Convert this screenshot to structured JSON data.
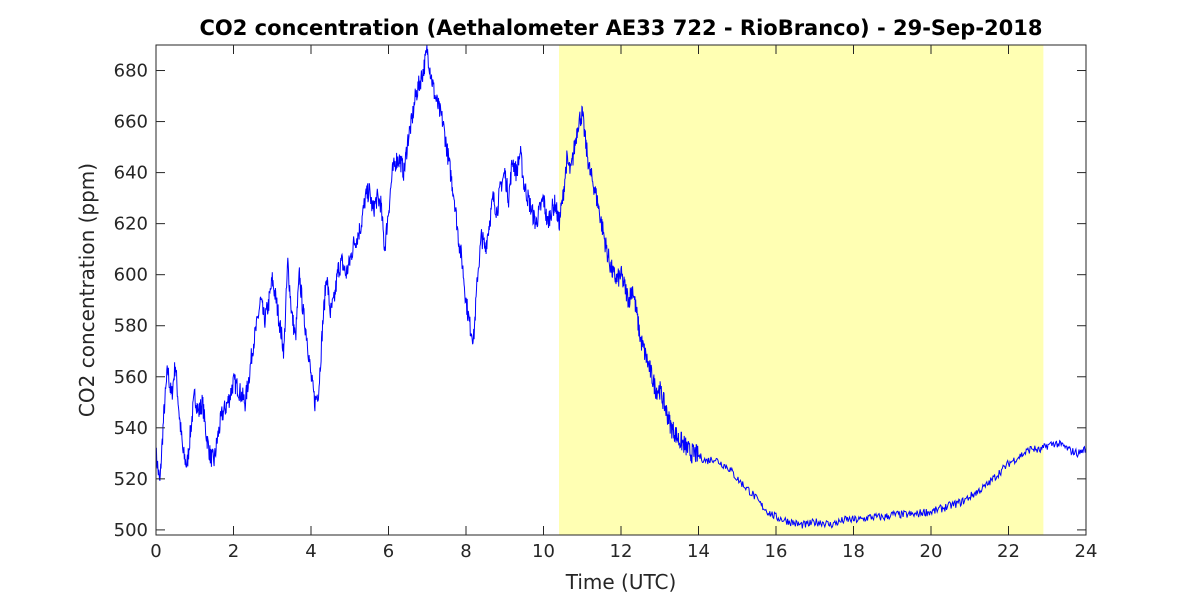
{
  "chart_data": {
    "type": "line",
    "title": "CO2 concentration (Aethalometer AE33 722 - RioBranco) - 29-Sep-2018",
    "xlabel": "Time (UTC)",
    "ylabel": "CO2 concentration (ppm)",
    "xlim": [
      0,
      24
    ],
    "ylim": [
      498,
      690
    ],
    "x_ticks": [
      0,
      2,
      4,
      6,
      8,
      10,
      12,
      14,
      16,
      18,
      20,
      22,
      24
    ],
    "y_ticks": [
      500,
      520,
      540,
      560,
      580,
      600,
      620,
      640,
      660,
      680
    ],
    "grid": false,
    "line_color": "#0000ff",
    "highlight": {
      "x_start": 10.4,
      "x_end": 22.9,
      "color": "#ffffb3"
    },
    "series": [
      {
        "x": [
          0,
          0.1,
          0.2,
          0.3,
          0.4,
          0.5,
          0.6,
          0.7,
          0.8,
          0.9,
          1.0,
          1.1,
          1.2,
          1.3,
          1.4,
          1.5,
          1.6,
          1.7,
          1.8,
          1.9,
          2.0,
          2.1,
          2.2,
          2.3,
          2.4,
          2.5,
          2.6,
          2.7,
          2.8,
          2.9,
          3.0,
          3.1,
          3.2,
          3.3,
          3.4,
          3.5,
          3.6,
          3.7,
          3.8,
          3.9,
          4.0,
          4.1,
          4.2,
          4.3,
          4.4,
          4.5,
          4.6,
          4.7,
          4.8,
          4.9,
          5.0,
          5.1,
          5.2,
          5.3,
          5.4,
          5.5,
          5.6,
          5.7,
          5.8,
          5.9,
          6.0,
          6.1,
          6.2,
          6.3,
          6.4,
          6.5,
          6.6,
          6.7,
          6.8,
          6.9,
          7.0,
          7.1,
          7.2,
          7.3,
          7.4,
          7.5,
          7.6,
          7.7,
          7.8,
          7.9,
          8.0,
          8.1,
          8.2,
          8.3,
          8.4,
          8.5,
          8.6,
          8.7,
          8.8,
          8.9,
          9.0,
          9.1,
          9.2,
          9.3,
          9.4,
          9.5,
          9.6,
          9.7,
          9.8,
          9.9,
          10.0,
          10.1,
          10.2,
          10.3,
          10.4,
          10.5,
          10.6,
          10.7,
          10.8,
          10.9,
          11.0,
          11.1,
          11.2,
          11.3,
          11.4,
          11.5,
          11.6,
          11.7,
          11.8,
          11.9,
          12.0,
          12.1,
          12.2,
          12.3,
          12.4,
          12.5,
          12.6,
          12.7,
          12.8,
          12.9,
          13.0,
          13.1,
          13.2,
          13.3,
          13.4,
          13.5,
          13.6,
          13.7,
          13.8,
          13.9,
          14.0,
          14.2,
          14.4,
          14.6,
          14.8,
          15.0,
          15.2,
          15.4,
          15.6,
          15.8,
          16.0,
          16.2,
          16.4,
          16.6,
          16.8,
          17.0,
          17.2,
          17.4,
          17.6,
          17.8,
          18.0,
          18.2,
          18.4,
          18.6,
          18.8,
          19.0,
          19.2,
          19.4,
          19.6,
          19.8,
          20.0,
          20.2,
          20.4,
          20.6,
          20.8,
          21.0,
          21.2,
          21.4,
          21.6,
          21.8,
          22.0,
          22.2,
          22.4,
          22.6,
          22.8,
          23.0,
          23.2,
          23.4,
          23.6,
          23.8,
          24.0
        ],
        "values": [
          530,
          518,
          545,
          563,
          552,
          565,
          545,
          530,
          525,
          540,
          553,
          546,
          550,
          537,
          529,
          527,
          537,
          545,
          548,
          552,
          558,
          556,
          553,
          550,
          560,
          572,
          580,
          590,
          582,
          588,
          598,
          590,
          580,
          570,
          605,
          585,
          575,
          600,
          585,
          575,
          560,
          550,
          555,
          580,
          600,
          585,
          590,
          602,
          605,
          600,
          605,
          612,
          615,
          620,
          630,
          633,
          625,
          630,
          628,
          610,
          625,
          640,
          645,
          645,
          640,
          653,
          660,
          670,
          675,
          680,
          688,
          678,
          670,
          665,
          660,
          650,
          640,
          630,
          615,
          605,
          590,
          580,
          575,
          600,
          615,
          610,
          620,
          630,
          625,
          635,
          640,
          630,
          645,
          640,
          648,
          635,
          630,
          625,
          620,
          625,
          630,
          620,
          625,
          628,
          620,
          630,
          645,
          640,
          650,
          660,
          663,
          650,
          640,
          635,
          628,
          620,
          612,
          605,
          600,
          598,
          600,
          595,
          590,
          595,
          585,
          575,
          570,
          565,
          560,
          555,
          555,
          550,
          545,
          540,
          538,
          535,
          534,
          532,
          530,
          530,
          529,
          527,
          528,
          526,
          524,
          520,
          517,
          514,
          510,
          507,
          505,
          504,
          503,
          502,
          502,
          503,
          503,
          502,
          503,
          504,
          504,
          504,
          505,
          505,
          505,
          506,
          506,
          506,
          506,
          507,
          507,
          508,
          509,
          510,
          511,
          513,
          515,
          517,
          520,
          523,
          526,
          528,
          530,
          532,
          531,
          533,
          534,
          533,
          531,
          530,
          532
        ]
      }
    ]
  }
}
